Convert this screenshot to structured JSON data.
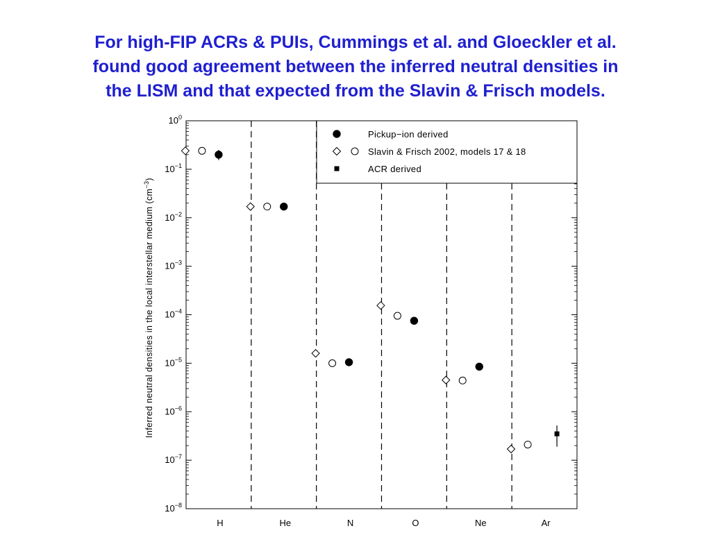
{
  "slide": {
    "title_lines": [
      "For high-FIP ACRs & PUIs, Cummings et al. and Gloeckler et al.",
      "found good agreement between the inferred neutral densities in",
      "the LISM and that expected from the Slavin & Frisch models."
    ],
    "title_color": "#1f1fd0"
  },
  "chart_data": {
    "type": "scatter",
    "yscale": "log",
    "ylim": [
      1e-08,
      1
    ],
    "ylabel": "Inferred neutral densities in the local interstellar medium (cm",
    "ylabel_sup": "−3",
    "ylabel_tail": ")",
    "yticks": [
      {
        "base": "10",
        "exp": "0"
      },
      {
        "base": "10",
        "exp": "−1"
      },
      {
        "base": "10",
        "exp": "−2"
      },
      {
        "base": "10",
        "exp": "−3"
      },
      {
        "base": "10",
        "exp": "−4"
      },
      {
        "base": "10",
        "exp": "−5"
      },
      {
        "base": "10",
        "exp": "−6"
      },
      {
        "base": "10",
        "exp": "−7"
      },
      {
        "base": "10",
        "exp": "−8"
      }
    ],
    "categories": [
      "H",
      "He",
      "N",
      "O",
      "Ne",
      "Ar"
    ],
    "series": [
      {
        "name": "Slavin & Frisch 2002, models 17 & 18",
        "marker": "diamond",
        "values": [
          0.24,
          0.017,
          1.6e-05,
          0.000155,
          4.5e-06,
          1.7e-07
        ]
      },
      {
        "name": "Slavin & Frisch 2002, models 17 & 18",
        "marker": "circle-open",
        "values": [
          0.24,
          0.017,
          1e-05,
          9.5e-05,
          4.4e-06,
          2.1e-07
        ]
      },
      {
        "name": "Pickup−ion derived",
        "marker": "circle-filled",
        "values": [
          0.2,
          0.017,
          1.05e-05,
          7.5e-05,
          8.5e-06,
          null
        ],
        "err_low": [
          0.155,
          null,
          9e-06,
          6.3e-05,
          7.2e-06,
          null
        ],
        "err_high": [
          0.25,
          null,
          1.15e-05,
          8.5e-05,
          9.6e-06,
          null
        ]
      },
      {
        "name": "ACR derived",
        "marker": "square-filled",
        "values": [
          null,
          null,
          null,
          null,
          null,
          3.5e-07
        ],
        "err_low": [
          null,
          null,
          null,
          null,
          null,
          1.9e-07
        ],
        "err_high": [
          null,
          null,
          null,
          null,
          null,
          5.2e-07
        ]
      }
    ],
    "legend": {
      "position": "top-right",
      "entries": [
        {
          "markers": [
            "circle-filled"
          ],
          "label": "Pickup−ion derived"
        },
        {
          "markers": [
            "diamond",
            "circle-open"
          ],
          "label": "Slavin & Frisch 2002, models 17 & 18"
        },
        {
          "markers": [
            "square-filled"
          ],
          "label": "ACR derived"
        }
      ]
    },
    "category_separators": "dashed"
  }
}
